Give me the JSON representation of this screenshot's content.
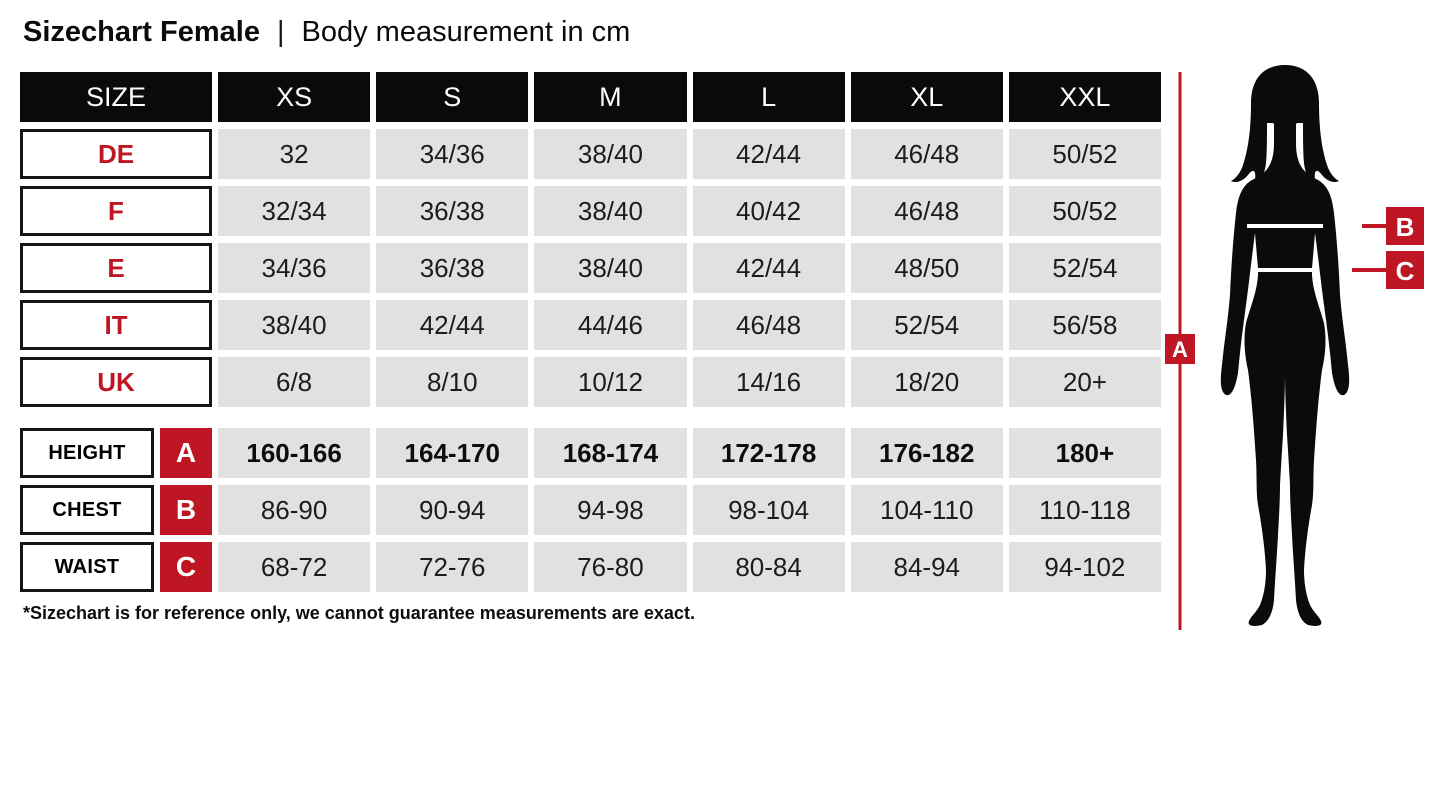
{
  "title": {
    "main": "Sizechart Female",
    "separator": "|",
    "subtitle": "Body measurement in cm"
  },
  "table": {
    "header": [
      "SIZE",
      "XS",
      "S",
      "M",
      "L",
      "XL",
      "XXL"
    ],
    "size_rows": [
      {
        "label": "DE",
        "values": [
          "32",
          "34/36",
          "38/40",
          "42/44",
          "46/48",
          "50/52"
        ]
      },
      {
        "label": "F",
        "values": [
          "32/34",
          "36/38",
          "38/40",
          "40/42",
          "46/48",
          "50/52"
        ]
      },
      {
        "label": "E",
        "values": [
          "34/36",
          "36/38",
          "38/40",
          "42/44",
          "48/50",
          "52/54"
        ]
      },
      {
        "label": "IT",
        "values": [
          "38/40",
          "42/44",
          "44/46",
          "46/48",
          "52/54",
          "56/58"
        ]
      },
      {
        "label": "UK",
        "values": [
          "6/8",
          "8/10",
          "10/12",
          "14/16",
          "18/20",
          "20+"
        ]
      }
    ],
    "measure_rows": [
      {
        "label": "HEIGHT",
        "badge": "A",
        "bold": true,
        "values": [
          "160-166",
          "164-170",
          "168-174",
          "172-178",
          "176-182",
          "180+"
        ]
      },
      {
        "label": "CHEST",
        "badge": "B",
        "bold": false,
        "values": [
          "86-90",
          "90-94",
          "94-98",
          "98-104",
          "104-110",
          "110-118"
        ]
      },
      {
        "label": "WAIST",
        "badge": "C",
        "bold": false,
        "values": [
          "68-72",
          "72-76",
          "76-80",
          "80-84",
          "84-94",
          "94-102"
        ]
      }
    ]
  },
  "footnote": "*Sizechart is for reference only, we cannot guarantee measurements are exact.",
  "figure": {
    "badge_a": "A",
    "badge_b": "B",
    "badge_c": "C"
  },
  "colors": {
    "accent_red": "#be1622",
    "cell_gray": "#e1e1e1",
    "header_black": "#0a0a0a"
  }
}
